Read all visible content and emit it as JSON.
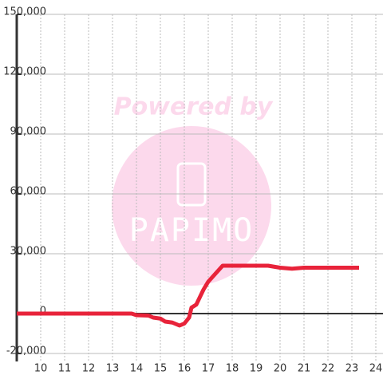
{
  "chart_data": {
    "type": "line",
    "watermark": {
      "text": "Powered by",
      "logo": "PAPIMO"
    },
    "x": [
      9,
      13.8,
      14.0,
      14.5,
      14.7,
      15.0,
      15.2,
      15.5,
      15.8,
      16.0,
      16.2,
      16.3,
      16.5,
      16.8,
      17.0,
      17.3,
      17.6,
      18.0,
      19.0,
      19.5,
      20.0,
      20.5,
      21.0,
      22.0,
      23.3
    ],
    "series": [
      {
        "color": "#e8233a",
        "values": [
          0,
          0,
          -800,
          -1000,
          -2000,
          -2500,
          -4000,
          -4500,
          -6000,
          -5000,
          -2000,
          3000,
          4500,
          12000,
          16000,
          20000,
          24000,
          24000,
          24000,
          24000,
          23000,
          22500,
          23000,
          23000,
          23000
        ]
      }
    ],
    "xlim": [
      9,
      24.3
    ],
    "xticks": [
      10,
      11,
      12,
      13,
      14,
      15,
      16,
      17,
      18,
      19,
      20,
      21,
      22,
      23,
      24
    ],
    "ylim": [
      -24000,
      150000
    ],
    "yticks": [
      {
        "value": -20000,
        "label": "-20,000"
      },
      0,
      {
        "value": 30000,
        "label": "30,000"
      },
      {
        "value": 60000,
        "label": "60,000"
      },
      {
        "value": 90000,
        "label": "90,000"
      },
      {
        "value": 120000,
        "label": "120,000"
      },
      {
        "value": 150000,
        "label": "150,000"
      }
    ],
    "grid": true
  }
}
